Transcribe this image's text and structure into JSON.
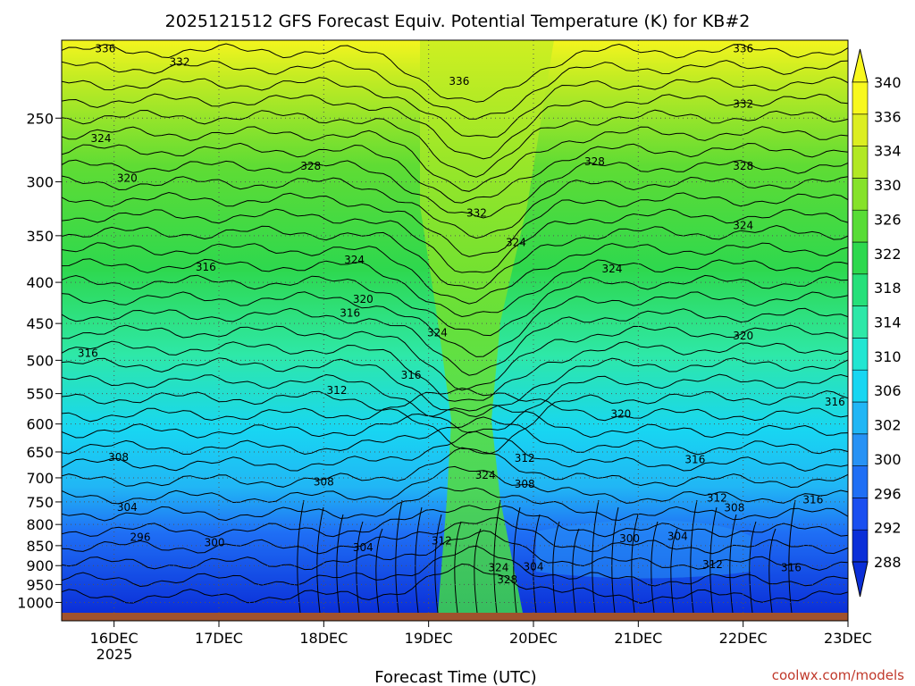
{
  "chart_data": {
    "type": "heatmap",
    "title": "2025121512 GFS Forecast Equiv. Potential Temperature (K) for KB#2",
    "xlabel": "Forecast Time (UTC)",
    "ylabel": "",
    "credit": "coolwx.com/models",
    "x_ticks": [
      "16DEC",
      "17DEC",
      "18DEC",
      "19DEC",
      "20DEC",
      "21DEC",
      "22DEC",
      "23DEC"
    ],
    "x_year": "2025",
    "xlim": [
      "2025-12-15T12:00",
      "2025-12-23T00:00"
    ],
    "y_ticks": [
      250,
      300,
      350,
      400,
      450,
      500,
      550,
      600,
      650,
      700,
      750,
      800,
      850,
      900,
      950,
      1000
    ],
    "y_axis_inverted": true,
    "grid": "dotted",
    "colorbar": {
      "labels": [
        340,
        336,
        334,
        330,
        326,
        322,
        318,
        314,
        310,
        306,
        302,
        300,
        296,
        292,
        288
      ],
      "colors": [
        "#0b2fd8",
        "#1a4ff0",
        "#1f6ff5",
        "#2792f5",
        "#21b6f5",
        "#18d6f2",
        "#22e6d2",
        "#2ee8a8",
        "#26e07a",
        "#2ed84e",
        "#58dc36",
        "#86e22a",
        "#b2e824",
        "#dcee22",
        "#f8f81e"
      ]
    },
    "contour_labels": [
      {
        "text": "336",
        "t": "2025-12-15T22:00",
        "p": 205
      },
      {
        "text": "332",
        "t": "2025-12-16T15:00",
        "p": 213
      },
      {
        "text": "336",
        "t": "2025-12-19T07:00",
        "p": 225
      },
      {
        "text": "336",
        "t": "2025-12-22T00:00",
        "p": 205
      },
      {
        "text": "332",
        "t": "2025-12-22T00:00",
        "p": 240
      },
      {
        "text": "324",
        "t": "2025-12-15T21:00",
        "p": 265
      },
      {
        "text": "328",
        "t": "2025-12-17T21:00",
        "p": 287
      },
      {
        "text": "328",
        "t": "2025-12-20T14:00",
        "p": 283
      },
      {
        "text": "328",
        "t": "2025-12-22T00:00",
        "p": 287
      },
      {
        "text": "320",
        "t": "2025-12-16T03:00",
        "p": 297
      },
      {
        "text": "332",
        "t": "2025-12-19T11:00",
        "p": 328
      },
      {
        "text": "324",
        "t": "2025-12-22T00:00",
        "p": 340
      },
      {
        "text": "324",
        "t": "2025-12-19T20:00",
        "p": 357
      },
      {
        "text": "316",
        "t": "2025-12-16T21:00",
        "p": 383
      },
      {
        "text": "324",
        "t": "2025-12-18T07:00",
        "p": 375
      },
      {
        "text": "324",
        "t": "2025-12-20T18:00",
        "p": 385
      },
      {
        "text": "320",
        "t": "2025-12-18T09:00",
        "p": 420
      },
      {
        "text": "316",
        "t": "2025-12-18T06:00",
        "p": 437
      },
      {
        "text": "324",
        "t": "2025-12-19T02:00",
        "p": 462
      },
      {
        "text": "320",
        "t": "2025-12-22T00:00",
        "p": 466
      },
      {
        "text": "316",
        "t": "2025-12-15T18:00",
        "p": 490
      },
      {
        "text": "316",
        "t": "2025-12-18T20:00",
        "p": 522
      },
      {
        "text": "312",
        "t": "2025-12-18T03:00",
        "p": 545
      },
      {
        "text": "316",
        "t": "2025-12-22T21:00",
        "p": 563
      },
      {
        "text": "320",
        "t": "2025-12-20T20:00",
        "p": 583
      },
      {
        "text": "308",
        "t": "2025-12-16T01:00",
        "p": 660
      },
      {
        "text": "316",
        "t": "2025-12-21T13:00",
        "p": 664
      },
      {
        "text": "312",
        "t": "2025-12-19T22:00",
        "p": 662
      },
      {
        "text": "324",
        "t": "2025-12-19T13:00",
        "p": 695
      },
      {
        "text": "308",
        "t": "2025-12-19T22:00",
        "p": 713
      },
      {
        "text": "308",
        "t": "2025-12-18T00:00",
        "p": 708
      },
      {
        "text": "304",
        "t": "2025-12-16T03:00",
        "p": 762
      },
      {
        "text": "312",
        "t": "2025-12-21T18:00",
        "p": 742
      },
      {
        "text": "308",
        "t": "2025-12-21T22:00",
        "p": 763
      },
      {
        "text": "316",
        "t": "2025-12-22T16:00",
        "p": 745
      },
      {
        "text": "296",
        "t": "2025-12-16T06:00",
        "p": 830
      },
      {
        "text": "300",
        "t": "2025-12-16T23:00",
        "p": 843
      },
      {
        "text": "304",
        "t": "2025-12-18T09:00",
        "p": 855
      },
      {
        "text": "312",
        "t": "2025-12-19T03:00",
        "p": 838
      },
      {
        "text": "300",
        "t": "2025-12-20T22:00",
        "p": 833
      },
      {
        "text": "304",
        "t": "2025-12-21T09:00",
        "p": 828
      },
      {
        "text": "312",
        "t": "2025-12-21T17:00",
        "p": 897
      },
      {
        "text": "316",
        "t": "2025-12-22T11:00",
        "p": 905
      },
      {
        "text": "324",
        "t": "2025-12-19T16:00",
        "p": 905
      },
      {
        "text": "304",
        "t": "2025-12-20T00:00",
        "p": 903
      },
      {
        "text": "328",
        "t": "2025-12-19T18:00",
        "p": 937
      }
    ]
  }
}
